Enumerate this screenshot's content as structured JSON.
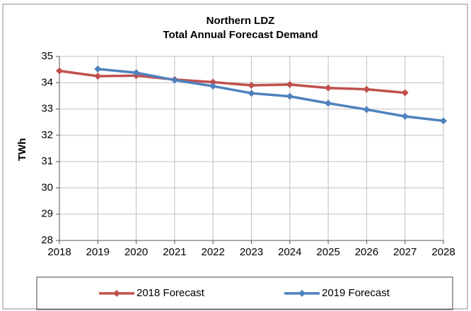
{
  "chart_data": {
    "type": "line",
    "title": [
      "Northern LDZ",
      "Total Annual Forecast Demand"
    ],
    "y_label": "TWh",
    "x": [
      2018,
      2019,
      2020,
      2021,
      2022,
      2023,
      2024,
      2025,
      2026,
      2027,
      2028
    ],
    "xlim": [
      2018,
      2028
    ],
    "xticks": [
      2018,
      2019,
      2020,
      2021,
      2022,
      2023,
      2024,
      2025,
      2026,
      2027,
      2028
    ],
    "ylim": [
      28,
      35
    ],
    "yticks": [
      28,
      29,
      30,
      31,
      32,
      33,
      34,
      35
    ],
    "grid": true,
    "legend": "bottom",
    "series": [
      {
        "name": "2018 Forecast",
        "color": "#c0504d",
        "values": [
          34.45,
          34.25,
          34.27,
          34.12,
          34.02,
          33.9,
          33.93,
          33.8,
          33.75,
          33.62,
          null
        ]
      },
      {
        "name": "2019 Forecast",
        "color": "#4f81bd",
        "values": [
          null,
          34.52,
          34.38,
          34.1,
          33.87,
          33.6,
          33.48,
          33.22,
          32.98,
          32.72,
          32.55
        ]
      }
    ]
  }
}
